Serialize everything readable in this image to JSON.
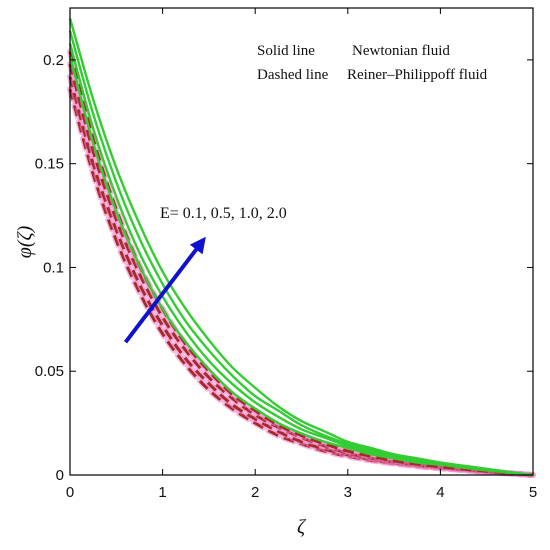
{
  "chart_data": {
    "type": "line",
    "xlabel": "ζ",
    "ylabel": "φ(ζ)",
    "xlim": [
      0,
      5
    ],
    "ylim": [
      0,
      0.225
    ],
    "x_ticks": [
      0,
      1,
      2,
      3,
      4,
      5
    ],
    "x_tick_labels": [
      "0",
      "1",
      "2",
      "3",
      "4",
      "5"
    ],
    "y_ticks": [
      0,
      0.05,
      0.1,
      0.15,
      0.2
    ],
    "y_tick_labels": [
      "0",
      "0.05",
      "0.1",
      "0.15",
      "0.2"
    ],
    "grid": false,
    "legend_text": {
      "solid_key": "Solid line",
      "solid_value": "Newtonian fluid",
      "dashed_key": "Dashed line",
      "dashed_value": "Reiner–Philippoff fluid"
    },
    "annotation": "E= 0.1, 0.5, 1.0, 2.0",
    "colors": {
      "solid": "#33cc33",
      "dashed": "#a52a2a",
      "dashed_halo": "#f080c8",
      "arrow": "#1010d0"
    },
    "x": [
      0,
      0.25,
      0.5,
      0.75,
      1,
      1.25,
      1.5,
      1.75,
      2,
      2.25,
      2.5,
      2.75,
      3,
      3.25,
      3.5,
      3.75,
      4,
      4.25,
      4.5,
      4.75,
      5
    ],
    "series": [
      {
        "style": "solid",
        "values": [
          0.202,
          0.16,
          0.127,
          0.101,
          0.08,
          0.064,
          0.051,
          0.04,
          0.032,
          0.025,
          0.02,
          0.016,
          0.013,
          0.01,
          0.008,
          0.006,
          0.005,
          0.0035,
          0.0022,
          0.0011,
          0.0
        ]
      },
      {
        "style": "solid",
        "values": [
          0.208,
          0.167,
          0.134,
          0.107,
          0.086,
          0.069,
          0.055,
          0.044,
          0.035,
          0.028,
          0.022,
          0.018,
          0.014,
          0.011,
          0.009,
          0.007,
          0.0055,
          0.004,
          0.0025,
          0.0012,
          0.0
        ]
      },
      {
        "style": "solid",
        "values": [
          0.214,
          0.174,
          0.141,
          0.114,
          0.092,
          0.074,
          0.06,
          0.048,
          0.038,
          0.031,
          0.024,
          0.019,
          0.015,
          0.012,
          0.0095,
          0.0075,
          0.0058,
          0.0042,
          0.0027,
          0.0013,
          0.0
        ]
      },
      {
        "style": "solid",
        "values": [
          0.22,
          0.181,
          0.148,
          0.121,
          0.098,
          0.08,
          0.065,
          0.052,
          0.042,
          0.033,
          0.026,
          0.021,
          0.016,
          0.013,
          0.01,
          0.008,
          0.006,
          0.0045,
          0.003,
          0.0014,
          0.0
        ]
      },
      {
        "style": "dashed",
        "values": [
          0.186,
          0.145,
          0.113,
          0.088,
          0.068,
          0.053,
          0.041,
          0.032,
          0.025,
          0.019,
          0.015,
          0.0115,
          0.009,
          0.007,
          0.0055,
          0.0042,
          0.0032,
          0.0023,
          0.0014,
          0.0007,
          0.0
        ]
      },
      {
        "style": "dashed",
        "values": [
          0.192,
          0.15,
          0.118,
          0.092,
          0.072,
          0.056,
          0.044,
          0.034,
          0.027,
          0.021,
          0.016,
          0.0125,
          0.0097,
          0.0075,
          0.0058,
          0.0045,
          0.0034,
          0.0025,
          0.0015,
          0.0008,
          0.0
        ]
      },
      {
        "style": "dashed",
        "values": [
          0.198,
          0.156,
          0.123,
          0.097,
          0.076,
          0.06,
          0.047,
          0.037,
          0.029,
          0.023,
          0.018,
          0.014,
          0.0105,
          0.0082,
          0.0063,
          0.0048,
          0.0036,
          0.0026,
          0.0016,
          0.0008,
          0.0
        ]
      },
      {
        "style": "dashed",
        "values": [
          0.204,
          0.162,
          0.128,
          0.101,
          0.08,
          0.063,
          0.05,
          0.039,
          0.031,
          0.024,
          0.019,
          0.015,
          0.0115,
          0.009,
          0.0068,
          0.0052,
          0.0039,
          0.0028,
          0.0018,
          0.0009,
          0.0
        ]
      }
    ],
    "arrow": {
      "from": [
        0.6,
        0.064
      ],
      "to": [
        1.42,
        0.112
      ]
    }
  }
}
